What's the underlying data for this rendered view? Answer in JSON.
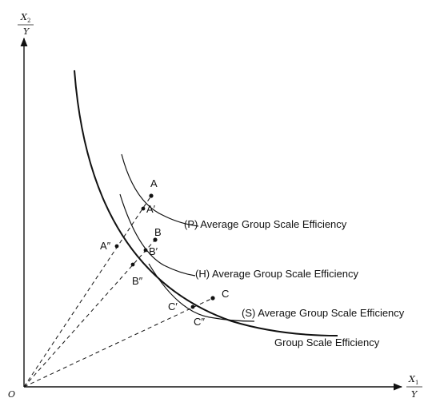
{
  "axes": {
    "y_num": "X",
    "y_sub": "2",
    "y_den": "Y",
    "x_num": "X",
    "x_sub": "1",
    "x_den": "Y",
    "origin": "O"
  },
  "points": {
    "A": "A",
    "A1": "A′",
    "A2": "A″",
    "B": "B",
    "B1": "B′",
    "B2": "B″",
    "C": "C",
    "C1": "C′",
    "C2": "C″"
  },
  "curves": {
    "P": "(P) Average Group Scale Efficiency",
    "H": "(H) Average Group Scale Efficiency",
    "S": "(S) Average Group Scale Efficiency",
    "G": "Group Scale Efficiency"
  }
}
